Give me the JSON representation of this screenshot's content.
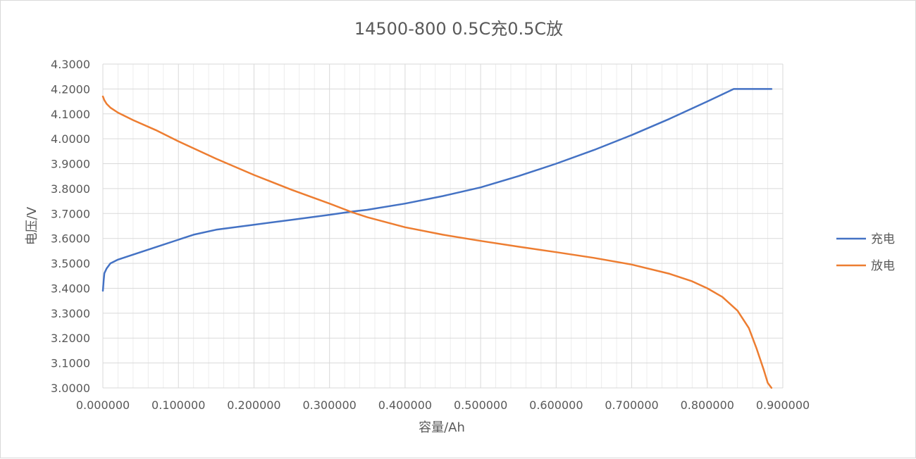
{
  "chart_data": {
    "type": "line",
    "title": "14500-800 0.5C充0.5C放",
    "xlabel": "容量/Ah",
    "ylabel": "电压/V",
    "xlim": [
      0,
      0.9
    ],
    "ylim": [
      3.0,
      4.3
    ],
    "x_ticks": [
      "0.000000",
      "0.100000",
      "0.200000",
      "0.300000",
      "0.400000",
      "0.500000",
      "0.600000",
      "0.700000",
      "0.800000",
      "0.900000"
    ],
    "y_ticks": [
      "3.0000",
      "3.1000",
      "3.2000",
      "3.3000",
      "3.4000",
      "3.5000",
      "3.6000",
      "3.7000",
      "3.8000",
      "3.9000",
      "4.0000",
      "4.1000",
      "4.2000",
      "4.3000"
    ],
    "grid": true,
    "legend_position": "right",
    "series": [
      {
        "name": "充电",
        "color": "#4472C4",
        "x": [
          0,
          0.001,
          0.002,
          0.005,
          0.01,
          0.02,
          0.04,
          0.07,
          0.1,
          0.12,
          0.15,
          0.2,
          0.25,
          0.3,
          0.33,
          0.35,
          0.4,
          0.45,
          0.5,
          0.55,
          0.6,
          0.65,
          0.7,
          0.75,
          0.8,
          0.835,
          0.86,
          0.885
        ],
        "y": [
          3.39,
          3.43,
          3.46,
          3.48,
          3.5,
          3.515,
          3.535,
          3.565,
          3.595,
          3.615,
          3.635,
          3.655,
          3.675,
          3.695,
          3.708,
          3.715,
          3.74,
          3.77,
          3.805,
          3.85,
          3.9,
          3.955,
          4.015,
          4.08,
          4.15,
          4.2,
          4.2,
          4.2
        ]
      },
      {
        "name": "放电",
        "color": "#ED7D31",
        "x": [
          0,
          0.002,
          0.005,
          0.01,
          0.02,
          0.04,
          0.07,
          0.1,
          0.15,
          0.2,
          0.25,
          0.3,
          0.33,
          0.35,
          0.4,
          0.45,
          0.5,
          0.55,
          0.6,
          0.65,
          0.7,
          0.75,
          0.78,
          0.8,
          0.82,
          0.84,
          0.855,
          0.865,
          0.875,
          0.88,
          0.885
        ],
        "y": [
          4.17,
          4.155,
          4.14,
          4.125,
          4.105,
          4.075,
          4.035,
          3.99,
          3.92,
          3.855,
          3.795,
          3.74,
          3.705,
          3.685,
          3.645,
          3.615,
          3.59,
          3.567,
          3.545,
          3.522,
          3.495,
          3.458,
          3.428,
          3.4,
          3.365,
          3.31,
          3.24,
          3.16,
          3.07,
          3.02,
          3.0
        ]
      }
    ]
  }
}
